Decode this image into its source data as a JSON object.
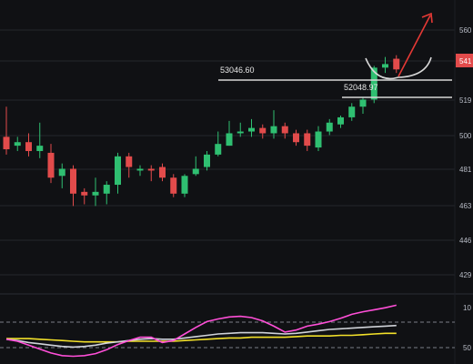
{
  "colors": {
    "background": "#101114",
    "grid": "#23262d",
    "up": "#2fbf71",
    "down": "#e24b4b",
    "annotation_line": "#d7d7d7",
    "arrow": "#e53935",
    "osc_pink": "#ff4fd8",
    "osc_gray": "#d0d3d9",
    "osc_yellow": "#f3e12a",
    "osc_dash": "#7a7d86",
    "axis_text": "#b8bcc6"
  },
  "axis": {
    "price_ticks": [
      "560",
      "541",
      "519",
      "500",
      "481",
      "463",
      "446",
      "429"
    ],
    "current_price_tag": "541",
    "osc_ticks": [
      "10",
      "50"
    ]
  },
  "annotations": {
    "resistance_label": "53046.60",
    "support_label": "52048.97"
  },
  "chart_data": {
    "type": "candlestick",
    "price_scale": {
      "top": 57400,
      "bottom": 41300
    },
    "candles": [
      {
        "o": 50100,
        "c": 49400,
        "h": 51800,
        "l": 49100
      },
      {
        "o": 49600,
        "c": 49800,
        "h": 50100,
        "l": 49300
      },
      {
        "o": 49800,
        "c": 49300,
        "h": 50300,
        "l": 49000
      },
      {
        "o": 49300,
        "c": 49600,
        "h": 50900,
        "l": 48900
      },
      {
        "o": 49200,
        "c": 47800,
        "h": 49700,
        "l": 47500
      },
      {
        "o": 47900,
        "c": 48300,
        "h": 48600,
        "l": 47200
      },
      {
        "o": 48300,
        "c": 46900,
        "h": 48500,
        "l": 46200
      },
      {
        "o": 47000,
        "c": 46800,
        "h": 47200,
        "l": 46300
      },
      {
        "o": 46800,
        "c": 47000,
        "h": 47800,
        "l": 46200
      },
      {
        "o": 46900,
        "c": 47400,
        "h": 47600,
        "l": 46300
      },
      {
        "o": 47400,
        "c": 49000,
        "h": 49200,
        "l": 46900
      },
      {
        "o": 49000,
        "c": 48400,
        "h": 49200,
        "l": 47800
      },
      {
        "o": 48200,
        "c": 48300,
        "h": 48500,
        "l": 47900
      },
      {
        "o": 48300,
        "c": 48200,
        "h": 48500,
        "l": 47600
      },
      {
        "o": 48400,
        "c": 47800,
        "h": 48600,
        "l": 47600
      },
      {
        "o": 47800,
        "c": 46900,
        "h": 48000,
        "l": 46700
      },
      {
        "o": 46900,
        "c": 47900,
        "h": 48000,
        "l": 46700
      },
      {
        "o": 48000,
        "c": 48300,
        "h": 49000,
        "l": 47900
      },
      {
        "o": 48400,
        "c": 49100,
        "h": 49300,
        "l": 48200
      },
      {
        "o": 49100,
        "c": 49700,
        "h": 50400,
        "l": 49000
      },
      {
        "o": 49600,
        "c": 50300,
        "h": 51000,
        "l": 49600
      },
      {
        "o": 50300,
        "c": 50400,
        "h": 50900,
        "l": 50100
      },
      {
        "o": 50400,
        "c": 50600,
        "h": 51100,
        "l": 50100
      },
      {
        "o": 50600,
        "c": 50300,
        "h": 50800,
        "l": 50000
      },
      {
        "o": 50300,
        "c": 50700,
        "h": 51600,
        "l": 50000
      },
      {
        "o": 50700,
        "c": 50300,
        "h": 50900,
        "l": 50000
      },
      {
        "o": 50300,
        "c": 49800,
        "h": 50500,
        "l": 49600
      },
      {
        "o": 50300,
        "c": 49600,
        "h": 50500,
        "l": 49300
      },
      {
        "o": 49500,
        "c": 50400,
        "h": 50700,
        "l": 49300
      },
      {
        "o": 50400,
        "c": 50900,
        "h": 51100,
        "l": 50200
      },
      {
        "o": 50800,
        "c": 51200,
        "h": 51300,
        "l": 50600
      },
      {
        "o": 51200,
        "c": 51800,
        "h": 52000,
        "l": 51000
      },
      {
        "o": 51800,
        "c": 52200,
        "h": 52300,
        "l": 51400
      },
      {
        "o": 52200,
        "c": 54000,
        "h": 54100,
        "l": 52000
      },
      {
        "o": 54000,
        "c": 54200,
        "h": 54600,
        "l": 53700
      },
      {
        "o": 54500,
        "c": 53900,
        "h": 54700,
        "l": 53700
      }
    ],
    "support_level": 52048.97,
    "resistance_level": 53046.6,
    "oscillator": {
      "pink": [
        35,
        32,
        26,
        20,
        14,
        10,
        9,
        10,
        13,
        19,
        27,
        33,
        38,
        38,
        30,
        33,
        43,
        53,
        62,
        66,
        69,
        70,
        68,
        63,
        55,
        46,
        49,
        55,
        58,
        62,
        67,
        73,
        77,
        80,
        83,
        87
      ],
      "gray": [
        35,
        33,
        30,
        28,
        26,
        24,
        23,
        24,
        26,
        29,
        31,
        33,
        35,
        36,
        35,
        35,
        37,
        39,
        41,
        43,
        44,
        45,
        45,
        45,
        44,
        43,
        44,
        46,
        48,
        50,
        51,
        52,
        53,
        54,
        55,
        56
      ],
      "yellow": [
        36,
        36,
        36,
        35,
        34,
        33,
        32,
        31,
        31,
        31,
        31,
        32,
        32,
        32,
        32,
        32,
        33,
        34,
        35,
        36,
        37,
        37,
        38,
        38,
        38,
        38,
        39,
        40,
        40,
        40,
        41,
        41,
        42,
        43,
        44,
        44
      ]
    }
  }
}
